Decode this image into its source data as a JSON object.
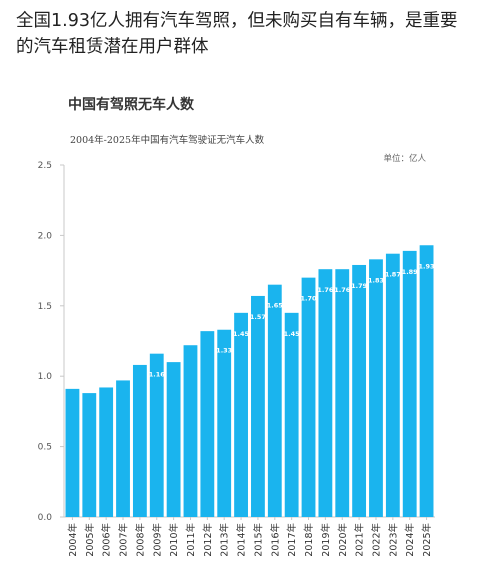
{
  "headline": "全国1.93亿人拥有汽车驾照，但未购买自有车辆，是重要的汽车租赁潜在用户群体",
  "chart_data": {
    "type": "bar",
    "title": "中国有驾照无车人数",
    "subtitle": "2004年-2025年中国有汽车驾驶证无汽车人数",
    "unit": "单位：亿人",
    "categories": [
      "2004年",
      "2005年",
      "2006年",
      "2007年",
      "2008年",
      "2009年",
      "2010年",
      "2011年",
      "2012年",
      "2013年",
      "2014年",
      "2015年",
      "2016年",
      "2017年",
      "2018年",
      "2019年",
      "2020年",
      "2021年",
      "2022年",
      "2023年",
      "2024年",
      "2025年"
    ],
    "values": [
      0.91,
      0.88,
      0.92,
      0.97,
      1.08,
      1.16,
      1.1,
      1.22,
      1.32,
      1.33,
      1.45,
      1.57,
      1.65,
      1.45,
      1.7,
      1.76,
      1.76,
      1.79,
      1.83,
      1.87,
      1.89,
      1.93
    ],
    "data_labels": [
      "",
      "",
      "",
      "",
      "",
      "1.16",
      "",
      "",
      "",
      "1.33",
      "1.45",
      "1.57",
      "1.65",
      "1.45",
      "1.70",
      "1.76",
      "1.76",
      "1.79",
      "1.83",
      "1.87",
      "1.89",
      "1.93"
    ],
    "yticks": [
      "0.0",
      "0.5",
      "1.0",
      "1.5",
      "2.0",
      "2.5"
    ],
    "ylim": [
      0,
      2.5
    ],
    "grid": false,
    "bar_color": "#1ab4ee"
  }
}
